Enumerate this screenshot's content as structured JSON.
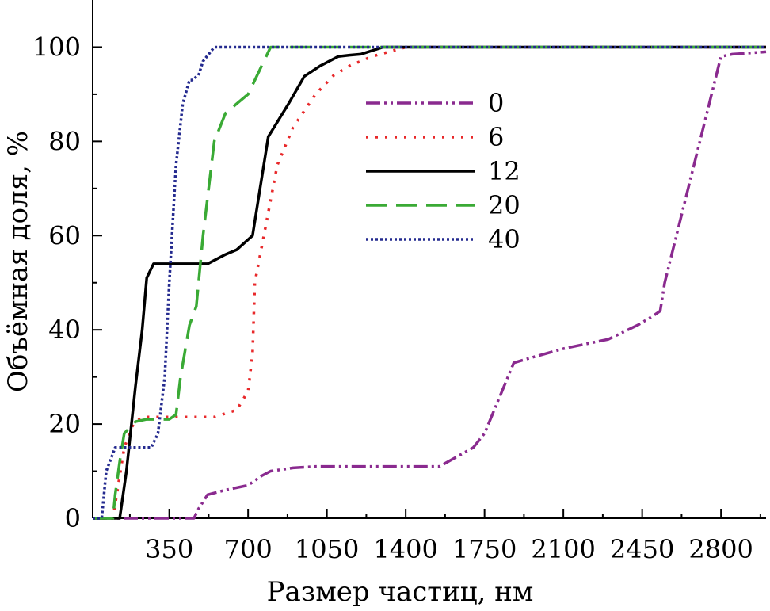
{
  "chart_data": {
    "type": "line",
    "xlabel": "Размер частиц, нм",
    "ylabel": "Объёмная доля, %",
    "xlim": [
      10,
      3000
    ],
    "ylim": [
      0,
      110
    ],
    "xticks": [
      350,
      700,
      1050,
      1400,
      1750,
      2100,
      2450,
      2800
    ],
    "yticks": [
      0,
      20,
      40,
      60,
      80,
      100
    ],
    "grid": false,
    "legend_position": "upper-middle",
    "series": [
      {
        "name": "0",
        "color": "#8a2a8f",
        "dash": "dash-dot-dot",
        "x": [
          10,
          460,
          480,
          520,
          600,
          700,
          760,
          800,
          900,
          1000,
          1200,
          1400,
          1550,
          1700,
          1750,
          1880,
          1950,
          2100,
          2300,
          2430,
          2500,
          2530,
          2550,
          2800,
          2850,
          3000
        ],
        "y": [
          0,
          0,
          2,
          5,
          6,
          7,
          9,
          10,
          10.7,
          11,
          11,
          11,
          11,
          15,
          18,
          33,
          34,
          36,
          38,
          41,
          43,
          44,
          50,
          98,
          98.5,
          99
        ]
      },
      {
        "name": "6",
        "color": "#e8282a",
        "dash": "dot",
        "x": [
          10,
          100,
          150,
          190,
          230,
          300,
          400,
          550,
          650,
          700,
          720,
          730,
          770,
          830,
          900,
          1000,
          1080,
          1150,
          1250,
          1400,
          3000
        ],
        "y": [
          0,
          0,
          15,
          20,
          21.5,
          21.5,
          21.5,
          21.5,
          23,
          27,
          35,
          50,
          60,
          75,
          83,
          90,
          94,
          96,
          98,
          100,
          100
        ]
      },
      {
        "name": "12",
        "color": "#000000",
        "dash": "solid",
        "x": [
          10,
          80,
          130,
          160,
          200,
          230,
          250,
          280,
          300,
          520,
          600,
          650,
          720,
          790,
          880,
          950,
          1020,
          1100,
          1150,
          1200,
          1300,
          3000
        ],
        "y": [
          0,
          0,
          0,
          10,
          28,
          40,
          51,
          54,
          54,
          54,
          56,
          57,
          60,
          81,
          88,
          93.8,
          96,
          98,
          98.3,
          98.5,
          100,
          100
        ]
      },
      {
        "name": "20",
        "color": "#3aaa35",
        "dash": "dash",
        "x": [
          10,
          100,
          110,
          130,
          150,
          200,
          250,
          300,
          350,
          380,
          400,
          440,
          470,
          500,
          550,
          600,
          650,
          700,
          750,
          800,
          3000
        ],
        "y": [
          0,
          0,
          5,
          12,
          18,
          20.5,
          21,
          21,
          21,
          22,
          30,
          41,
          45,
          60,
          80,
          86,
          88,
          90,
          95,
          100,
          100
        ]
      },
      {
        "name": "40",
        "color": "#242a8f",
        "dash": "dot-dense",
        "x": [
          10,
          50,
          70,
          110,
          150,
          200,
          270,
          300,
          330,
          350,
          380,
          410,
          440,
          450,
          480,
          500,
          550,
          600,
          3000
        ],
        "y": [
          0,
          0,
          10,
          15,
          15,
          15,
          15,
          18,
          30,
          50,
          75,
          88,
          93,
          93,
          94,
          97,
          100,
          100,
          100
        ]
      }
    ]
  }
}
